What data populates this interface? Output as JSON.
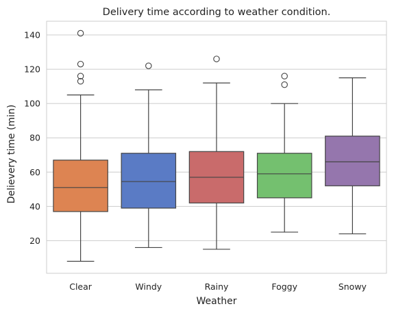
{
  "chart_data": {
    "type": "box",
    "title": "Delivery time according to weather condition.",
    "xlabel": "Weather",
    "ylabel": "Delievery time (min)",
    "ylim": [
      1,
      148
    ],
    "yticks": [
      20,
      40,
      60,
      80,
      100,
      120,
      140
    ],
    "grid": "y",
    "categories": [
      "Clear",
      "Windy",
      "Rainy",
      "Foggy",
      "Snowy"
    ],
    "colors": [
      "#dd8452",
      "#5a7bc5",
      "#c96b6b",
      "#74c06f",
      "#9576ad"
    ],
    "boxes": [
      {
        "category": "Clear",
        "whisker_low": 8,
        "q1": 37,
        "median": 51,
        "q3": 67,
        "whisker_high": 105,
        "outliers": [
          113,
          116,
          123,
          141
        ]
      },
      {
        "category": "Windy",
        "whisker_low": 16,
        "q1": 39,
        "median": 54.5,
        "q3": 71,
        "whisker_high": 108,
        "outliers": [
          122
        ]
      },
      {
        "category": "Rainy",
        "whisker_low": 15,
        "q1": 42,
        "median": 57,
        "q3": 72,
        "whisker_high": 112,
        "outliers": [
          126
        ]
      },
      {
        "category": "Foggy",
        "whisker_low": 25,
        "q1": 45,
        "median": 59,
        "q3": 71,
        "whisker_high": 100,
        "outliers": [
          111,
          116
        ]
      },
      {
        "category": "Snowy",
        "whisker_low": 24,
        "q1": 52,
        "median": 66,
        "q3": 81,
        "whisker_high": 115,
        "outliers": []
      }
    ]
  }
}
